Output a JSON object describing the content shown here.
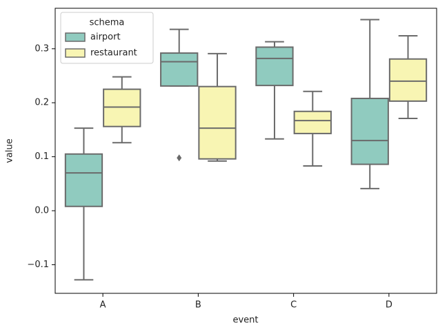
{
  "chart_data": {
    "type": "box",
    "x_label": "event",
    "y_label": "value",
    "categories": [
      "A",
      "B",
      "C",
      "D"
    ],
    "legend_title": "schema",
    "legend_position": "upper left",
    "ylim": [
      -0.153,
      0.375
    ],
    "yticks": [
      {
        "value": -0.1,
        "label": "−0.1"
      },
      {
        "value": 0,
        "label": "0.0"
      },
      0.1,
      0.2,
      0.3
    ],
    "series": [
      {
        "name": "airport",
        "color": "#90cbbf",
        "whislo": [
          -0.128,
          0.231,
          0.133,
          0.041
        ],
        "q1": [
          0.008,
          0.231,
          0.232,
          0.086
        ],
        "med": [
          0.07,
          0.276,
          0.282,
          0.13
        ],
        "q3": [
          0.105,
          0.292,
          0.303,
          0.208
        ],
        "whishi": [
          0.153,
          0.336,
          0.313,
          0.354
        ],
        "fliers": [
          [],
          [
            0.098
          ],
          [],
          []
        ]
      },
      {
        "name": "restaurant",
        "color": "#f8f5b3",
        "whislo": [
          0.126,
          0.092,
          0.083,
          0.171
        ],
        "q1": [
          0.156,
          0.096,
          0.143,
          0.203
        ],
        "med": [
          0.192,
          0.153,
          0.167,
          0.24
        ],
        "q3": [
          0.225,
          0.23,
          0.184,
          0.281
        ],
        "whishi": [
          0.248,
          0.291,
          0.221,
          0.324
        ],
        "fliers": [
          [],
          [],
          [],
          []
        ]
      }
    ]
  }
}
